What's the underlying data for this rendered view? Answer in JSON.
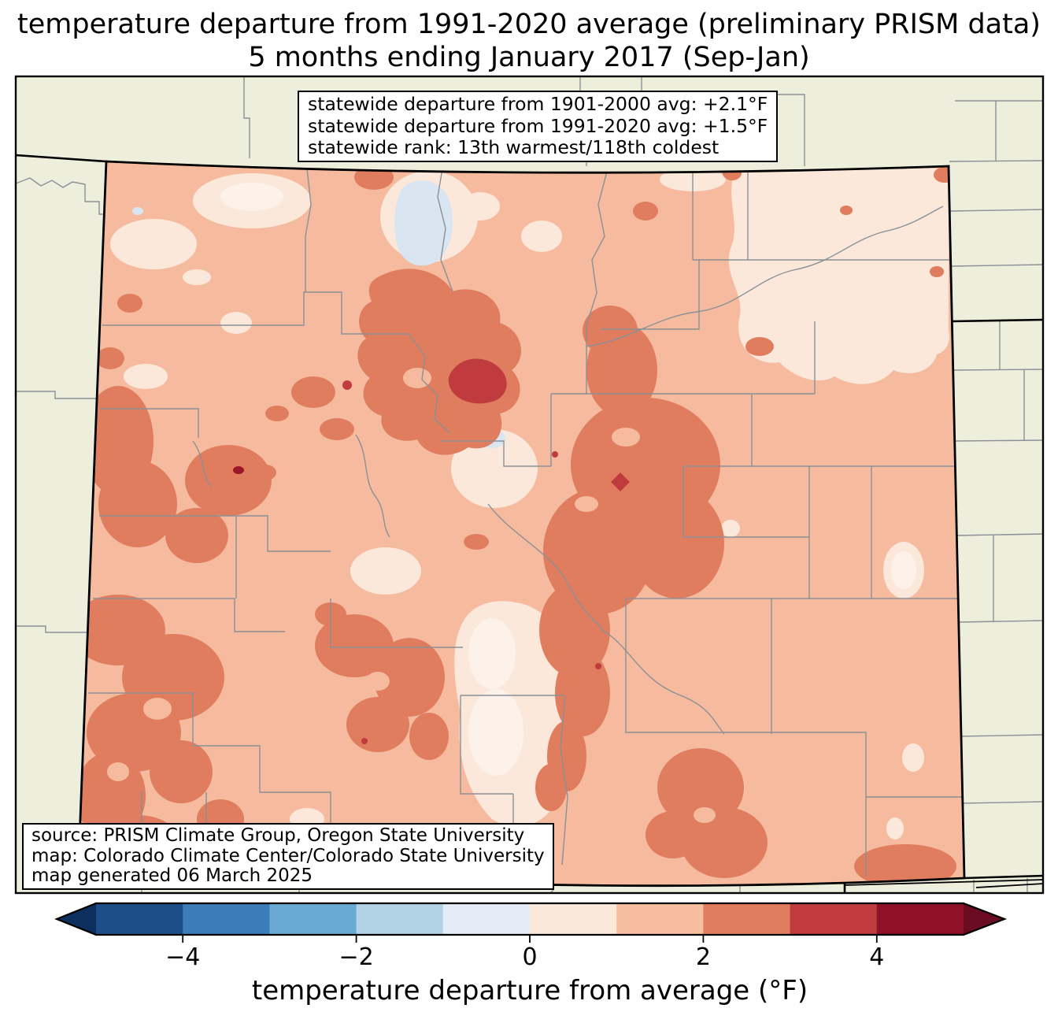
{
  "title": {
    "line1": "temperature departure from 1991-2020 average (preliminary PRISM data)",
    "line2": "5 months ending January 2017 (Sep-Jan)"
  },
  "stats_box": {
    "line1": "statewide departure from 1901-2000 avg: +2.1°F",
    "line2": "statewide departure from 1991-2020 avg: +1.5°F",
    "line3": "statewide rank: 13th warmest/118th coldest"
  },
  "source_box": {
    "line1": "source: PRISM Climate Group, Oregon State University",
    "line2": "map: Colorado Climate Center/Colorado State University",
    "line3": "map generated 06 March 2025"
  },
  "colorbar": {
    "label": "temperature departure from average (°F)",
    "range": [
      -5,
      5
    ],
    "ticks": [
      {
        "value": -4,
        "label": "−4"
      },
      {
        "value": -2,
        "label": "−2"
      },
      {
        "value": 0,
        "label": "0"
      },
      {
        "value": 2,
        "label": "2"
      },
      {
        "value": 4,
        "label": "4"
      }
    ],
    "segments": [
      {
        "from": -5,
        "to": -4,
        "color": "#1d4e89"
      },
      {
        "from": -4,
        "to": -3,
        "color": "#3c7cb8"
      },
      {
        "from": -3,
        "to": -2,
        "color": "#6aaad2"
      },
      {
        "from": -2,
        "to": -1,
        "color": "#b2d3e6"
      },
      {
        "from": -1,
        "to": 0,
        "color": "#e4edf5"
      },
      {
        "from": 0,
        "to": 1,
        "color": "#fae8db"
      },
      {
        "from": 1,
        "to": 2,
        "color": "#f7bda1"
      },
      {
        "from": 2,
        "to": 3,
        "color": "#e07d5f"
      },
      {
        "from": 3,
        "to": 4,
        "color": "#c03b3d"
      },
      {
        "from": 4,
        "to": 5,
        "color": "#8e1127"
      }
    ],
    "under_color": "#0c2f5e",
    "over_color": "#6b0c23"
  },
  "map": {
    "outside_fill": "#eeeedd",
    "county_line_color": "#8a9096",
    "state_border_color": "#000000",
    "class_colors": {
      "minus1_0": "#d9e5f0",
      "zero_1": "#fbe8db",
      "zero_1_bright": "#fdf2ea",
      "one_2": "#f6bb9e",
      "two_3": "#e07d5f",
      "three_4": "#c03b3d",
      "four_5": "#9c1629"
    }
  }
}
